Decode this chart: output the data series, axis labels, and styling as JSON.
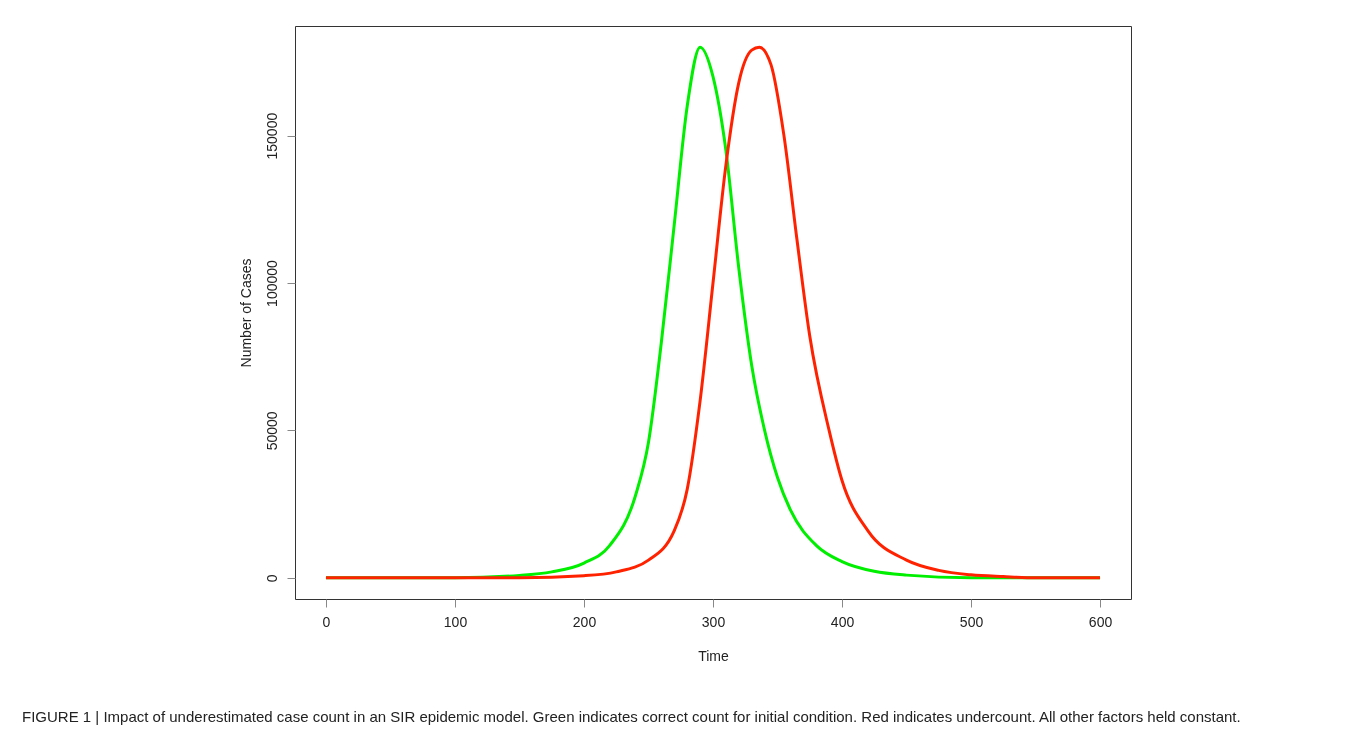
{
  "chart_data": {
    "type": "line",
    "xlabel": "Time",
    "ylabel": "Number of Cases",
    "xlim": [
      -24,
      624
    ],
    "ylim": [
      -7200,
      187200
    ],
    "xticks": [
      0,
      100,
      200,
      300,
      400,
      500,
      600
    ],
    "yticks": [
      0,
      50000,
      100000,
      150000
    ],
    "grid": false,
    "marker": "none",
    "line_style": "solid",
    "series": [
      {
        "color": "#00ee00",
        "x": [
          0,
          100,
          150,
          175,
          200,
          220,
          240,
          250,
          260,
          270,
          280,
          290,
          300,
          310,
          320,
          330,
          340,
          350,
          360,
          380,
          400,
          425,
          450,
          500,
          550,
          600
        ],
        "values": [
          0,
          0,
          800,
          2000,
          5000,
          11000,
          28000,
          46000,
          80000,
          120000,
          160000,
          180000,
          170000,
          145000,
          105000,
          72000,
          50000,
          34000,
          23000,
          11000,
          5500,
          2200,
          900,
          0,
          0,
          0
        ]
      },
      {
        "color": "#ff2200",
        "x": [
          0,
          150,
          200,
          225,
          250,
          270,
          280,
          290,
          300,
          310,
          320,
          330,
          336,
          345,
          355,
          365,
          375,
          390,
          400,
          420,
          450,
          475,
          500,
          525,
          550,
          600
        ],
        "values": [
          0,
          0,
          700,
          2000,
          6000,
          16000,
          30000,
          60000,
          100000,
          140000,
          168000,
          179000,
          180000,
          174000,
          150000,
          115000,
          82000,
          50000,
          33000,
          16000,
          6000,
          2500,
          1000,
          400,
          0,
          0
        ]
      }
    ],
    "annotations": [
      "FIGURE 1 | Impact of underestimated case count in an SIR epidemic model. Green indicates correct count for initial condition. Red indicates undercount. All other factors held constant."
    ]
  }
}
